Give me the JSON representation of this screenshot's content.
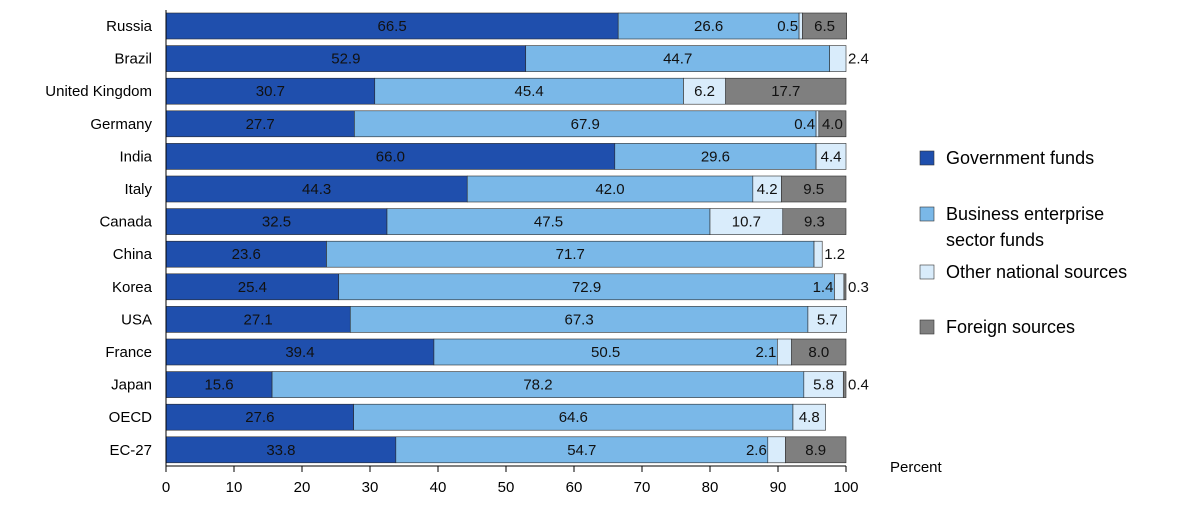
{
  "chart_data": {
    "type": "bar",
    "orientation": "horizontal",
    "stacked": true,
    "categories": [
      "Russia",
      "Brazil",
      "United Kingdom",
      "Germany",
      "India",
      "Italy",
      "Canada",
      "China",
      "Korea",
      "USA",
      "France",
      "Japan",
      "OECD",
      "EC-27"
    ],
    "series": [
      {
        "name": "Government funds",
        "color": "#1f4fad",
        "values": [
          66.5,
          52.9,
          30.7,
          27.7,
          66.0,
          44.3,
          32.5,
          23.6,
          25.4,
          27.1,
          39.4,
          15.6,
          27.6,
          33.8
        ]
      },
      {
        "name": "Business enterprise sector funds",
        "color": "#7ab8e8",
        "values": [
          26.6,
          44.7,
          45.4,
          67.9,
          29.6,
          42.0,
          47.5,
          71.7,
          72.9,
          67.3,
          50.5,
          78.2,
          64.6,
          54.7
        ]
      },
      {
        "name": "Other national sources",
        "color": "#d9ecfb",
        "values": [
          0.5,
          2.4,
          6.2,
          0.4,
          4.4,
          4.2,
          10.7,
          1.2,
          1.4,
          5.7,
          2.1,
          5.8,
          4.8,
          2.6
        ]
      },
      {
        "name": "Foreign sources",
        "color": "#7f7f7f",
        "values": [
          6.5,
          null,
          17.7,
          4.0,
          null,
          9.5,
          9.3,
          null,
          0.3,
          null,
          8.0,
          0.4,
          null,
          8.9
        ]
      }
    ],
    "xlabel": "Percent",
    "xlim": [
      0,
      100
    ],
    "xticks": [
      0,
      10,
      20,
      30,
      40,
      50,
      60,
      70,
      80,
      90,
      100
    ],
    "legend": {
      "position": "right"
    }
  }
}
